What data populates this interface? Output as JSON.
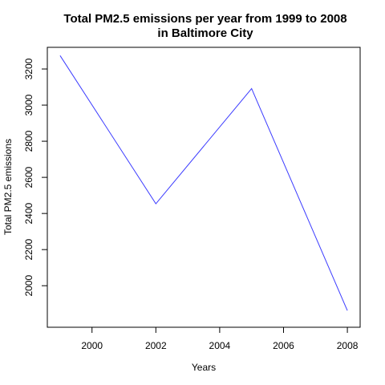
{
  "chart_data": {
    "type": "line",
    "title": "Total PM2.5 emissions per year from 1999 to 2008",
    "subtitle": "in Baltimore City",
    "xlabel": "Years",
    "ylabel": "Total PM2.5 emissions",
    "x": [
      1999,
      2002,
      2005,
      2008
    ],
    "series": [
      {
        "values": [
          3274.18,
          2453.92,
          3091.35,
          1862.28
        ],
        "color": "#3b3bff"
      }
    ],
    "xlim": [
      1998.6,
      2008.4
    ],
    "ylim": [
      1770,
      3320
    ],
    "xticks": [
      2000,
      2002,
      2004,
      2006,
      2008
    ],
    "yticks": [
      2000,
      2200,
      2400,
      2600,
      2800,
      3000,
      3200
    ],
    "grid": false,
    "legend": "none"
  }
}
